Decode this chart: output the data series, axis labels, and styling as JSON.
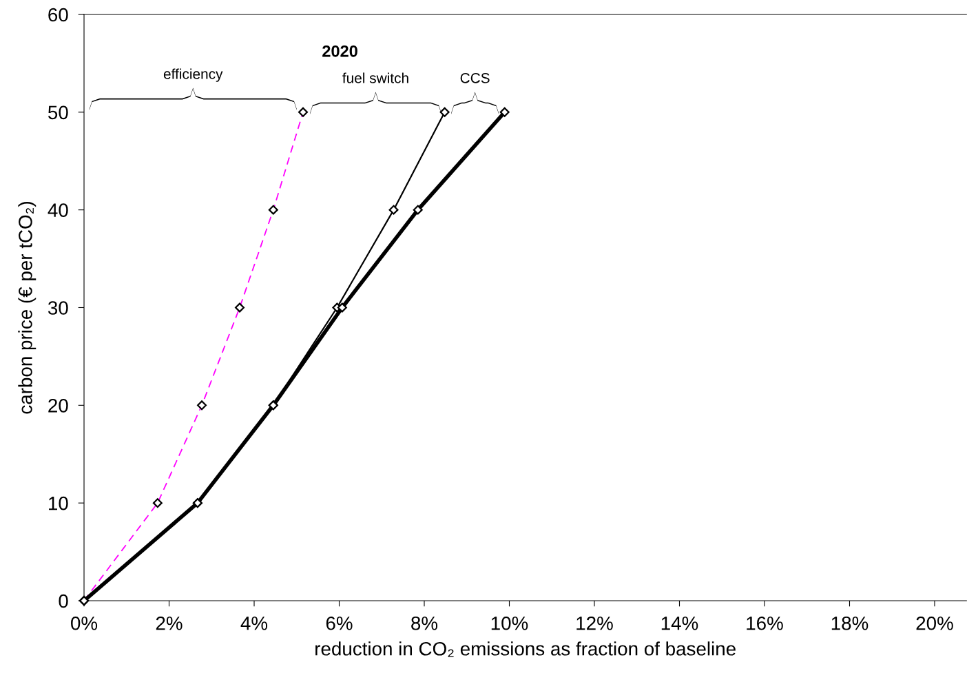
{
  "chart_data": {
    "type": "line",
    "title": "2020",
    "xlabel": "reduction in CO₂ emissions as fraction of baseline",
    "ylabel": "carbon price (€ per tCO₂)",
    "xlim": [
      0,
      20.75
    ],
    "ylim": [
      0,
      60
    ],
    "xticks": [
      {
        "value": 0,
        "label": "0%"
      },
      {
        "value": 2,
        "label": "2%"
      },
      {
        "value": 4,
        "label": "4%"
      },
      {
        "value": 6,
        "label": "6%"
      },
      {
        "value": 8,
        "label": "8%"
      },
      {
        "value": 10,
        "label": "10%"
      },
      {
        "value": 12,
        "label": "12%"
      },
      {
        "value": 14,
        "label": "14%"
      },
      {
        "value": 16,
        "label": "16%"
      },
      {
        "value": 18,
        "label": "18%"
      },
      {
        "value": 20,
        "label": "20%"
      }
    ],
    "yticks": [
      0,
      10,
      20,
      30,
      40,
      50,
      60
    ],
    "marker": "diamond",
    "grid": false,
    "legend": false,
    "annotations": [
      "efficiency",
      "fuel switch",
      "CCS"
    ],
    "series": [
      {
        "color": "#ff00ff",
        "line_style": "dashed",
        "x": [
          0,
          1.73,
          2.77,
          3.66,
          4.45,
          5.15
        ],
        "values": [
          0,
          10,
          20,
          30,
          40,
          50
        ]
      },
      {
        "color": "#000000",
        "line_style": "solid",
        "x": [
          0,
          2.67,
          4.45,
          5.95,
          7.28,
          8.48
        ],
        "values": [
          0,
          10,
          20,
          30,
          40,
          50
        ]
      },
      {
        "color": "#000000",
        "line_style": "solid",
        "x": [
          0,
          2.67,
          4.45,
          6.07,
          7.85,
          9.89
        ],
        "values": [
          0,
          10,
          20,
          30,
          40,
          50
        ]
      }
    ]
  }
}
